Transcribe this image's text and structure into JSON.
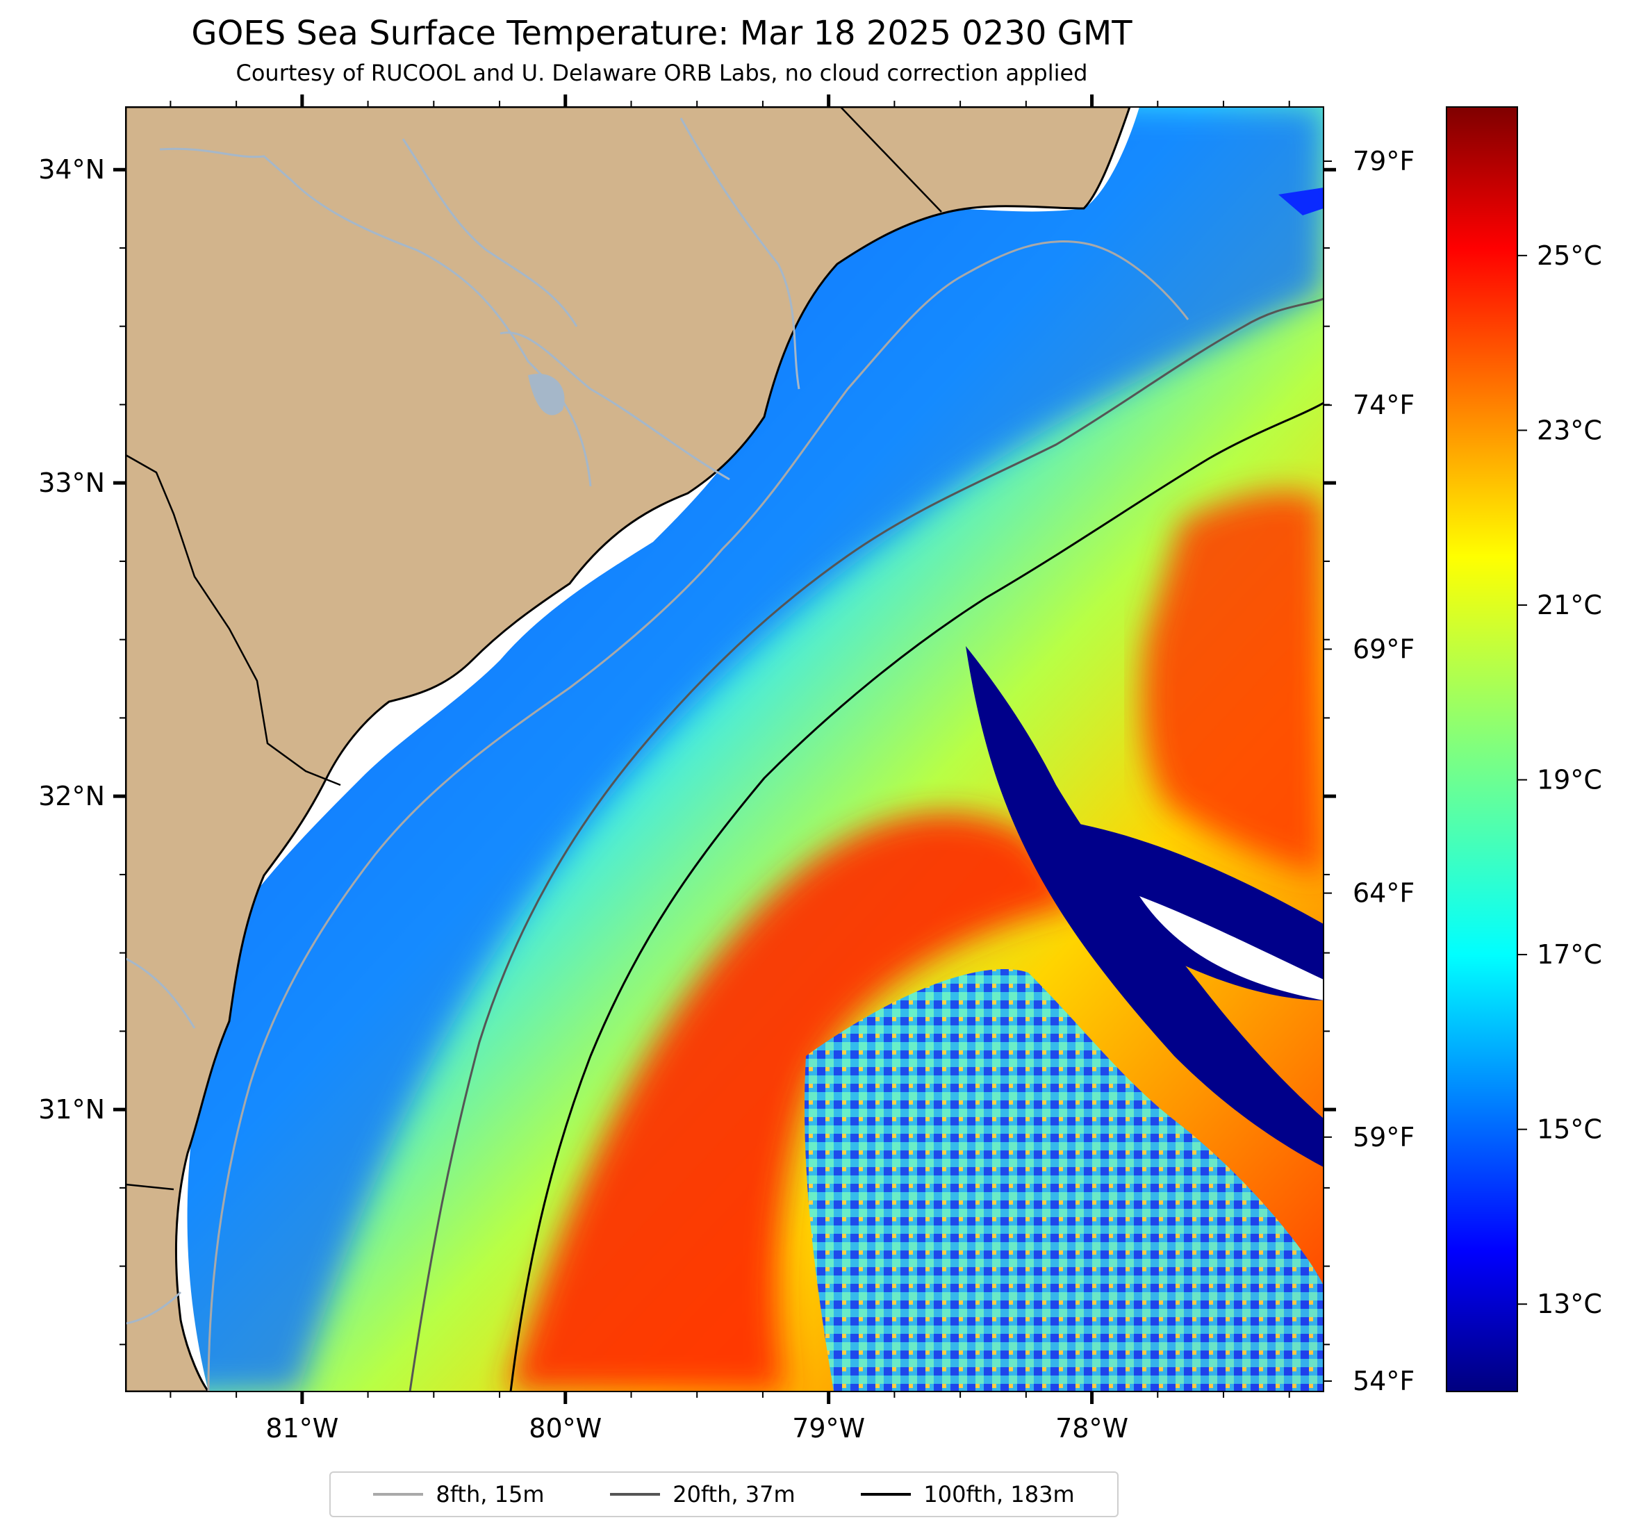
{
  "title": "GOES Sea Surface Temperature: Mar 18 2025 0230 GMT",
  "subtitle": "Courtesy of RUCOOL and U. Delaware ORB Labs, no cloud correction applied",
  "map": {
    "longitude_range": [
      -81.67,
      -77.12
    ],
    "latitude_range": [
      30.1,
      34.2
    ],
    "land_color": "#d2b48c",
    "no_data_color": "#ffffff",
    "river_color": "#a5b7c9",
    "lat_ticks": [
      {
        "value": 34,
        "label": "34°N"
      },
      {
        "value": 33,
        "label": "33°N"
      },
      {
        "value": 32,
        "label": "32°N"
      },
      {
        "value": 31,
        "label": "31°N"
      }
    ],
    "lon_ticks": [
      {
        "value": -81,
        "label": "81°W"
      },
      {
        "value": -80,
        "label": "80°W"
      },
      {
        "value": -79,
        "label": "79°W"
      },
      {
        "value": -78,
        "label": "78°W"
      }
    ],
    "fahrenheit_ticks": [
      {
        "label": "79°F"
      },
      {
        "label": "74°F"
      },
      {
        "label": "69°F"
      },
      {
        "label": "64°F"
      },
      {
        "label": "59°F"
      },
      {
        "label": "54°F"
      }
    ]
  },
  "colorbar": {
    "colormap": "jet",
    "range_c": [
      12,
      26.7
    ],
    "ticks": [
      {
        "value": 25,
        "label": "25°C"
      },
      {
        "value": 23,
        "label": "23°C"
      },
      {
        "value": 21,
        "label": "21°C"
      },
      {
        "value": 19,
        "label": "19°C"
      },
      {
        "value": 17,
        "label": "17°C"
      },
      {
        "value": 15,
        "label": "15°C"
      },
      {
        "value": 13,
        "label": "13°C"
      }
    ]
  },
  "legend": {
    "items": [
      {
        "label": "8fth, 15m",
        "color": "#a9a9a9"
      },
      {
        "label": "20fth, 37m",
        "color": "#555555"
      },
      {
        "label": "100fth, 183m",
        "color": "#000000"
      }
    ]
  }
}
